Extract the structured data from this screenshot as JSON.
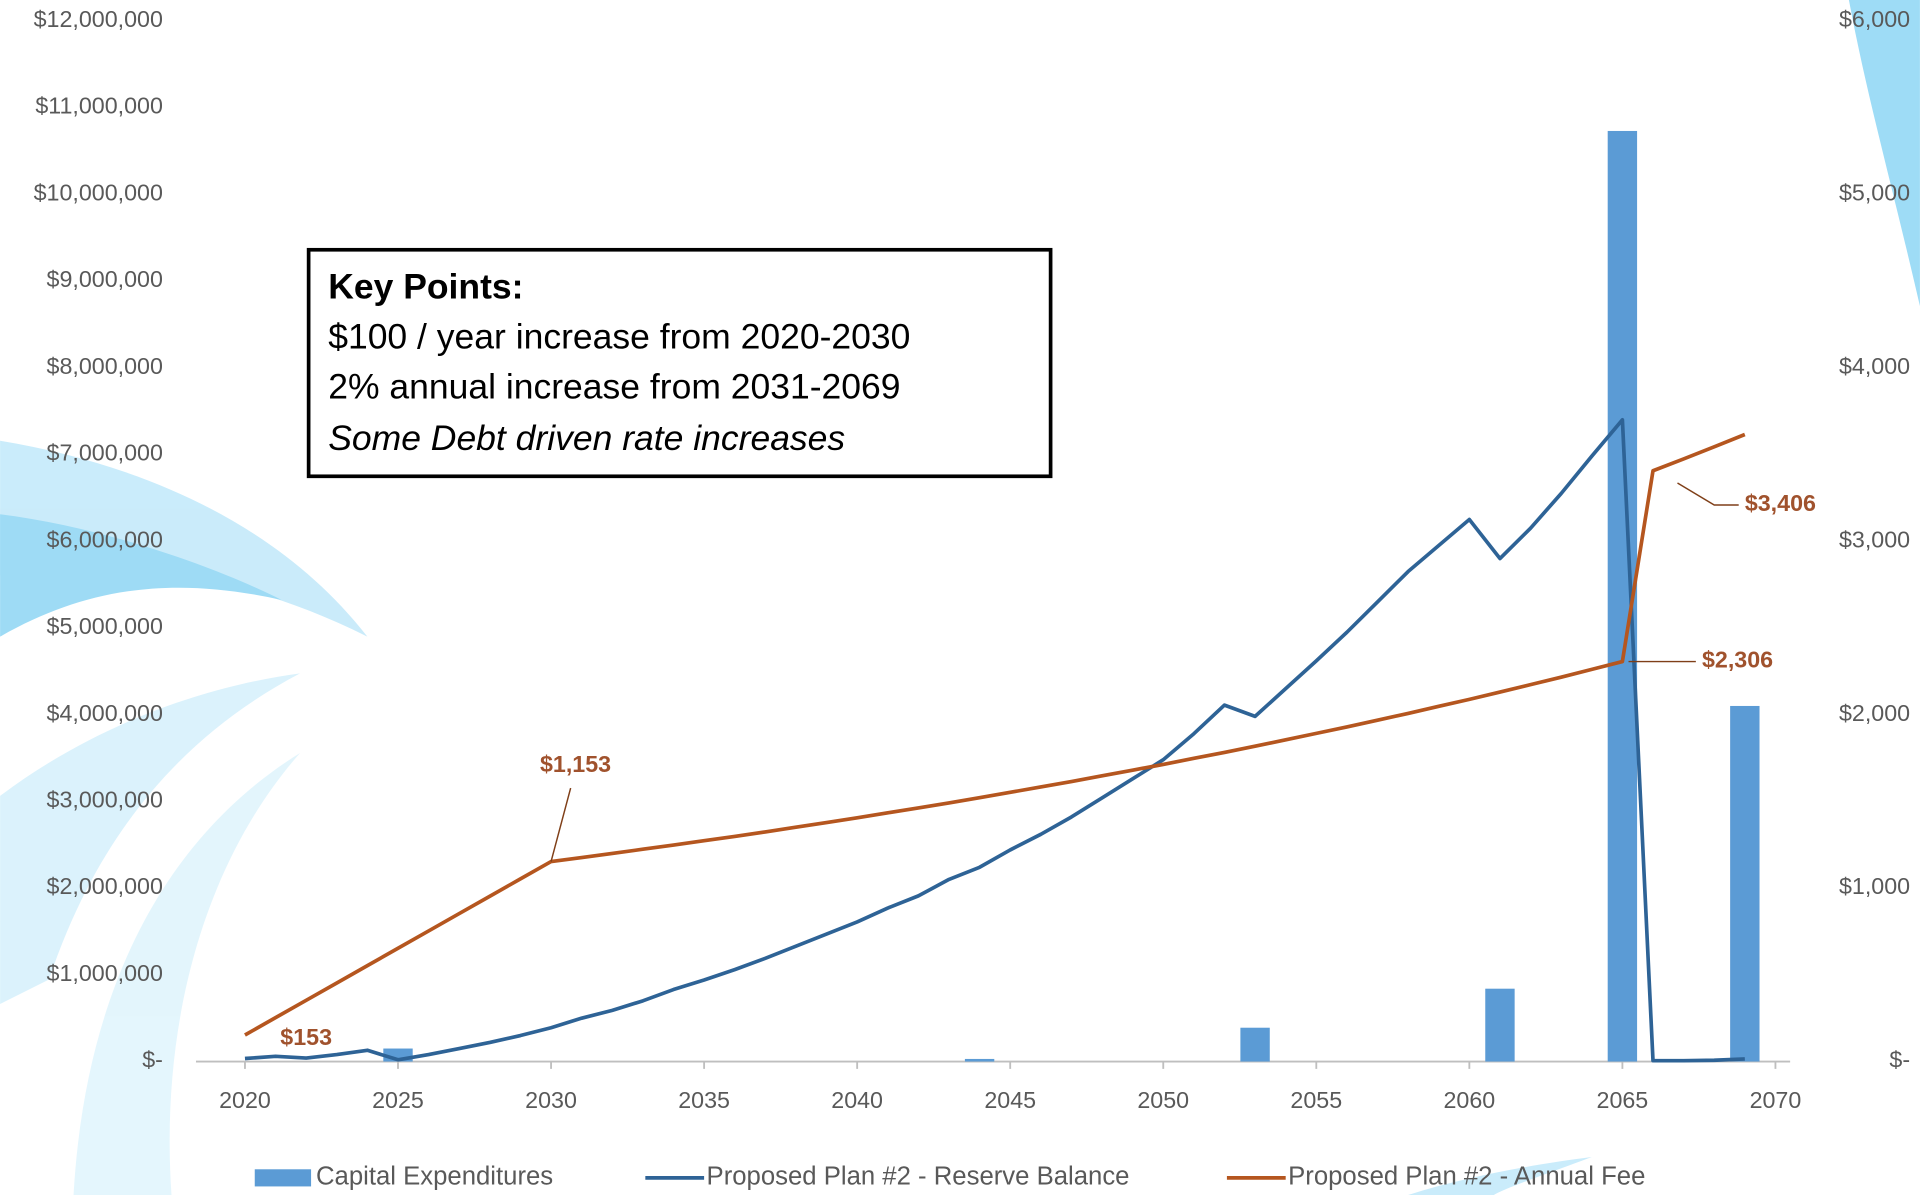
{
  "chart_data": {
    "type": "combo",
    "x": [
      2020,
      2021,
      2022,
      2023,
      2024,
      2025,
      2026,
      2027,
      2028,
      2029,
      2030,
      2031,
      2032,
      2033,
      2034,
      2035,
      2036,
      2037,
      2038,
      2039,
      2040,
      2041,
      2042,
      2043,
      2044,
      2045,
      2046,
      2047,
      2048,
      2049,
      2050,
      2051,
      2052,
      2053,
      2054,
      2055,
      2056,
      2057,
      2058,
      2059,
      2060,
      2061,
      2062,
      2063,
      2064,
      2065,
      2066,
      2067,
      2068,
      2069
    ],
    "xlim": [
      2019.5,
      2070
    ],
    "xticks": [
      2020,
      2025,
      2030,
      2035,
      2040,
      2045,
      2050,
      2055,
      2060,
      2065,
      2070
    ],
    "ylim": [
      0,
      12000000
    ],
    "yticks": [
      {
        "value": 0,
        "label": "$-"
      },
      {
        "value": 1000000,
        "label": "$1,000,000"
      },
      {
        "value": 2000000,
        "label": "$2,000,000"
      },
      {
        "value": 3000000,
        "label": "$3,000,000"
      },
      {
        "value": 4000000,
        "label": "$4,000,000"
      },
      {
        "value": 5000000,
        "label": "$5,000,000"
      },
      {
        "value": 6000000,
        "label": "$6,000,000"
      },
      {
        "value": 7000000,
        "label": "$7,000,000"
      },
      {
        "value": 8000000,
        "label": "$8,000,000"
      },
      {
        "value": 9000000,
        "label": "$9,000,000"
      },
      {
        "value": 10000000,
        "label": "$10,000,000"
      },
      {
        "value": 11000000,
        "label": "$11,000,000"
      },
      {
        "value": 12000000,
        "label": "$12,000,000"
      }
    ],
    "y2lim": [
      0,
      6000
    ],
    "y2ticks": [
      {
        "value": 0,
        "label": "$-"
      },
      {
        "value": 1000,
        "label": "$1,000"
      },
      {
        "value": 2000,
        "label": "$2,000"
      },
      {
        "value": 3000,
        "label": "$3,000"
      },
      {
        "value": 4000,
        "label": "$4,000"
      },
      {
        "value": 5000,
        "label": "$5,000"
      },
      {
        "value": 6000,
        "label": "$6,000"
      }
    ],
    "series": [
      {
        "name": "Capital Expenditures",
        "type": "bar",
        "color": "#5b9bd5",
        "values": [
          0,
          0,
          0,
          0,
          0,
          150000,
          0,
          0,
          0,
          0,
          0,
          0,
          0,
          0,
          0,
          0,
          0,
          0,
          0,
          0,
          0,
          0,
          0,
          0,
          30000,
          0,
          0,
          0,
          0,
          0,
          0,
          0,
          0,
          390000,
          0,
          0,
          0,
          0,
          0,
          0,
          0,
          840000,
          0,
          0,
          0,
          10730000,
          0,
          0,
          0,
          4100000
        ]
      },
      {
        "name": "Proposed Plan #2 - Reserve Balance",
        "type": "line",
        "color": "#2e6396",
        "values": [
          35000,
          60000,
          40000,
          80000,
          130000,
          20000,
          80000,
          150000,
          220000,
          300000,
          390000,
          500000,
          590000,
          700000,
          830000,
          940000,
          1060000,
          1190000,
          1330000,
          1470000,
          1610000,
          1770000,
          1910000,
          2100000,
          2240000,
          2440000,
          2620000,
          2820000,
          3040000,
          3260000,
          3480000,
          3780000,
          4110000,
          3980000,
          4300000,
          4620000,
          4950000,
          5300000,
          5650000,
          5950000,
          6250000,
          5800000,
          6150000,
          6550000,
          6980000,
          7400000,
          10000,
          10000,
          15000,
          30000
        ]
      },
      {
        "name": "Proposed Plan #2 - Annual Fee",
        "type": "line",
        "axis": "y2",
        "color": "#b5561f",
        "values": [
          153,
          253,
          353,
          453,
          553,
          653,
          753,
          853,
          953,
          1053,
          1153,
          1176,
          1200,
          1224,
          1248,
          1273,
          1298,
          1324,
          1351,
          1378,
          1405,
          1434,
          1462,
          1491,
          1521,
          1552,
          1583,
          1614,
          1647,
          1680,
          1713,
          1748,
          1782,
          1818,
          1855,
          1892,
          1929,
          1968,
          2007,
          2048,
          2088,
          2130,
          2173,
          2216,
          2261,
          2306,
          3406,
          3474,
          3544,
          3615
        ],
        "value_labels": [
          "$153",
          null,
          null,
          null,
          null,
          null,
          null,
          null,
          null,
          null,
          "$1,153",
          null,
          null,
          null,
          null,
          null,
          null,
          null,
          null,
          null,
          null,
          null,
          null,
          null,
          null,
          null,
          null,
          null,
          null,
          null,
          null,
          null,
          null,
          null,
          null,
          null,
          null,
          null,
          null,
          null,
          null,
          null,
          null,
          null,
          null,
          "$2,306",
          "$3,406",
          null,
          null,
          null
        ]
      }
    ],
    "annotation": {
      "title": "Key Points:",
      "lines": [
        "$100 / year increase from 2020-2030",
        "2% annual increase from 2031-2069",
        "Some Debt driven rate increases"
      ]
    }
  }
}
